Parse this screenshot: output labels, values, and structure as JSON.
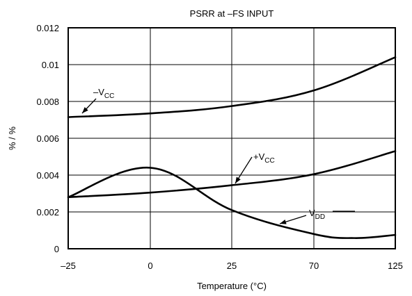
{
  "chart_data": {
    "type": "line",
    "title": "PSRR at –FS INPUT",
    "xlabel": "Temperature (°C)",
    "ylabel": "% / %",
    "x_tick_labels": [
      "–25",
      "0",
      "25",
      "70",
      "125"
    ],
    "y_tick_labels": [
      "0",
      "0.002",
      "0.004",
      "0.006",
      "0.008",
      "0.01",
      "0.012"
    ],
    "ylim": [
      0,
      0.012
    ],
    "grid": true,
    "series": [
      {
        "name": "–VCC",
        "label_main": "–V",
        "label_sub": "CC",
        "points": [
          [
            "–25",
            0.00715
          ],
          [
            "0",
            0.00735
          ],
          [
            "25",
            0.00775
          ],
          [
            "70",
            0.0086
          ],
          [
            "125",
            0.0104
          ]
        ]
      },
      {
        "name": "+VCC",
        "label_main": "+V",
        "label_sub": "CC",
        "points": [
          [
            "–25",
            0.0028
          ],
          [
            "0",
            0.00305
          ],
          [
            "25",
            0.00345
          ],
          [
            "70",
            0.00405
          ],
          [
            "125",
            0.0053
          ]
        ]
      },
      {
        "name": "VDD",
        "label_main": "V",
        "label_sub": "DD",
        "points": [
          [
            "–25",
            0.0028
          ],
          [
            "0",
            0.0044
          ],
          [
            "25",
            0.0021
          ],
          [
            "70",
            0.0008
          ],
          [
            "125",
            0.00075
          ]
        ]
      }
    ]
  }
}
